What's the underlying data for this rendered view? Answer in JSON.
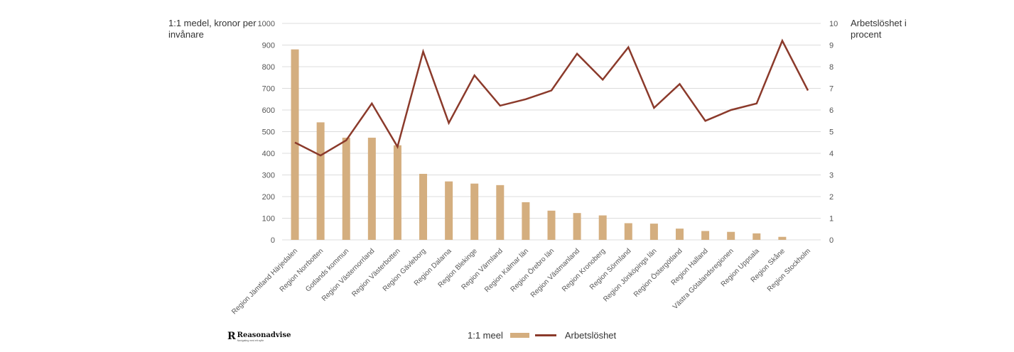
{
  "colors": {
    "bar": "#d4ae7f",
    "line": "#8b3a2b",
    "grid": "#dcdcdc",
    "text": "#555555"
  },
  "chart_data": {
    "type": "bar+line",
    "left_axis_title": "1:1 medel, kronor per invånare",
    "right_axis_title": "Arbetslöshet i procent",
    "categories": [
      "Region Jämtland Härjedalen",
      "Region Norrbotten",
      "Gotlands kommun",
      "Region Västernorrland",
      "Region Västerbotten",
      "Region Gävleborg",
      "Region Dalarna",
      "Region Blekinge",
      "Region Värmland",
      "Region Kalmar län",
      "Region Örebro län",
      "Region Västmanland",
      "Region Kronoberg",
      "Region Sörmland",
      "Region Jönköpings län",
      "Region Östergötland",
      "Region Halland",
      "Västra Götalandsregionen",
      "Region Uppsala",
      "Region Skåne",
      "Region Stockholm"
    ],
    "series": [
      {
        "name": "1:1 meel",
        "type": "bar",
        "axis": "left",
        "values": [
          880,
          543,
          472,
          472,
          437,
          305,
          270,
          260,
          253,
          174,
          135,
          124,
          113,
          77,
          75,
          52,
          41,
          37,
          30,
          14,
          0
        ]
      },
      {
        "name": "Arbetslöshet",
        "type": "line",
        "axis": "right",
        "values": [
          4.5,
          3.9,
          4.6,
          6.3,
          4.3,
          8.7,
          5.4,
          7.6,
          6.2,
          6.5,
          6.9,
          8.6,
          7.4,
          8.9,
          6.1,
          7.2,
          5.5,
          6.0,
          6.3,
          9.2,
          6.9
        ]
      }
    ],
    "left_ylim": [
      0,
      1000
    ],
    "left_ticks": [
      "0",
      "100",
      "200",
      "300",
      "400",
      "500",
      "600",
      "700",
      "800",
      "900",
      "1000"
    ],
    "right_ylim": [
      0,
      10
    ],
    "right_ticks": [
      "0",
      "1",
      "2",
      "3",
      "4",
      "5",
      "6",
      "7",
      "8",
      "9",
      "10"
    ],
    "grid": true,
    "legend_position": "bottom"
  },
  "legend": {
    "bar_label": "1:1 meel",
    "line_label": "Arbetslöshet"
  },
  "logo": {
    "mark": "R",
    "name": "Reasonadvise",
    "tagline": "Navigating med ett syfte"
  }
}
